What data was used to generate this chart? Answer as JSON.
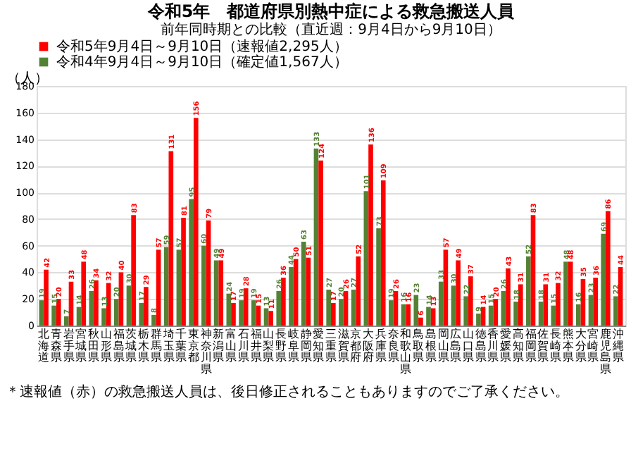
{
  "chart_data": {
    "type": "bar",
    "title": "令和5年　都道府県別熱中症による救急搬送人員",
    "subtitle": "前年同時期との比較（直近週：9月4日から9月10日）",
    "ylabel": "（人）",
    "categories": [
      "北海道",
      "青森県",
      "岩手県",
      "宮城県",
      "秋田県",
      "山形県",
      "福島県",
      "茨城県",
      "栃木県",
      "群馬県",
      "埼玉県",
      "千葉県",
      "東京都",
      "神奈川県",
      "新潟県",
      "富山県",
      "石川県",
      "福井県",
      "山梨県",
      "長野県",
      "岐阜県",
      "静岡県",
      "愛知県",
      "三重県",
      "滋賀県",
      "京都府",
      "大阪府",
      "兵庫県",
      "奈良県",
      "和歌山県",
      "鳥取県",
      "島根県",
      "岡山県",
      "広島県",
      "山口県",
      "徳島県",
      "香川県",
      "愛媛県",
      "高知県",
      "福岡県",
      "佐賀県",
      "長崎県",
      "熊本県",
      "大分県",
      "宮崎県",
      "鹿児島県",
      "沖縄県"
    ],
    "series": [
      {
        "name": "令和4年9月4日～9月10日（確定値1,567人）",
        "color": "#548235",
        "values": [
          19,
          15,
          7,
          14,
          26,
          13,
          20,
          30,
          17,
          8,
          59,
          57,
          95,
          60,
          49,
          24,
          19,
          19,
          13,
          26,
          44,
          63,
          133,
          27,
          20,
          27,
          101,
          73,
          19,
          16,
          23,
          14,
          33,
          30,
          22,
          9,
          15,
          26,
          18,
          52,
          18,
          15,
          48,
          16,
          23,
          69,
          22
        ]
      },
      {
        "name": "令和5年9月4日～9月10日（速報値2,295人）",
        "color": "#ff0000",
        "values": [
          42,
          20,
          33,
          48,
          34,
          32,
          40,
          83,
          29,
          57,
          131,
          81,
          156,
          79,
          49,
          17,
          28,
          15,
          11,
          36,
          50,
          51,
          124,
          17,
          26,
          52,
          136,
          109,
          26,
          16,
          6,
          13,
          57,
          49,
          37,
          14,
          20,
          43,
          31,
          83,
          31,
          32,
          48,
          35,
          36,
          86,
          44
        ]
      }
    ],
    "ylim": [
      0,
      180
    ],
    "yticks": [
      0,
      20,
      40,
      60,
      80,
      100,
      120,
      140,
      160,
      180
    ],
    "grid": "y",
    "legend": "top",
    "data_labels": true,
    "annotations": [
      "＊速報値（赤）の救急搬送人員は、後日修正されることもありますのでご了承ください。"
    ]
  }
}
